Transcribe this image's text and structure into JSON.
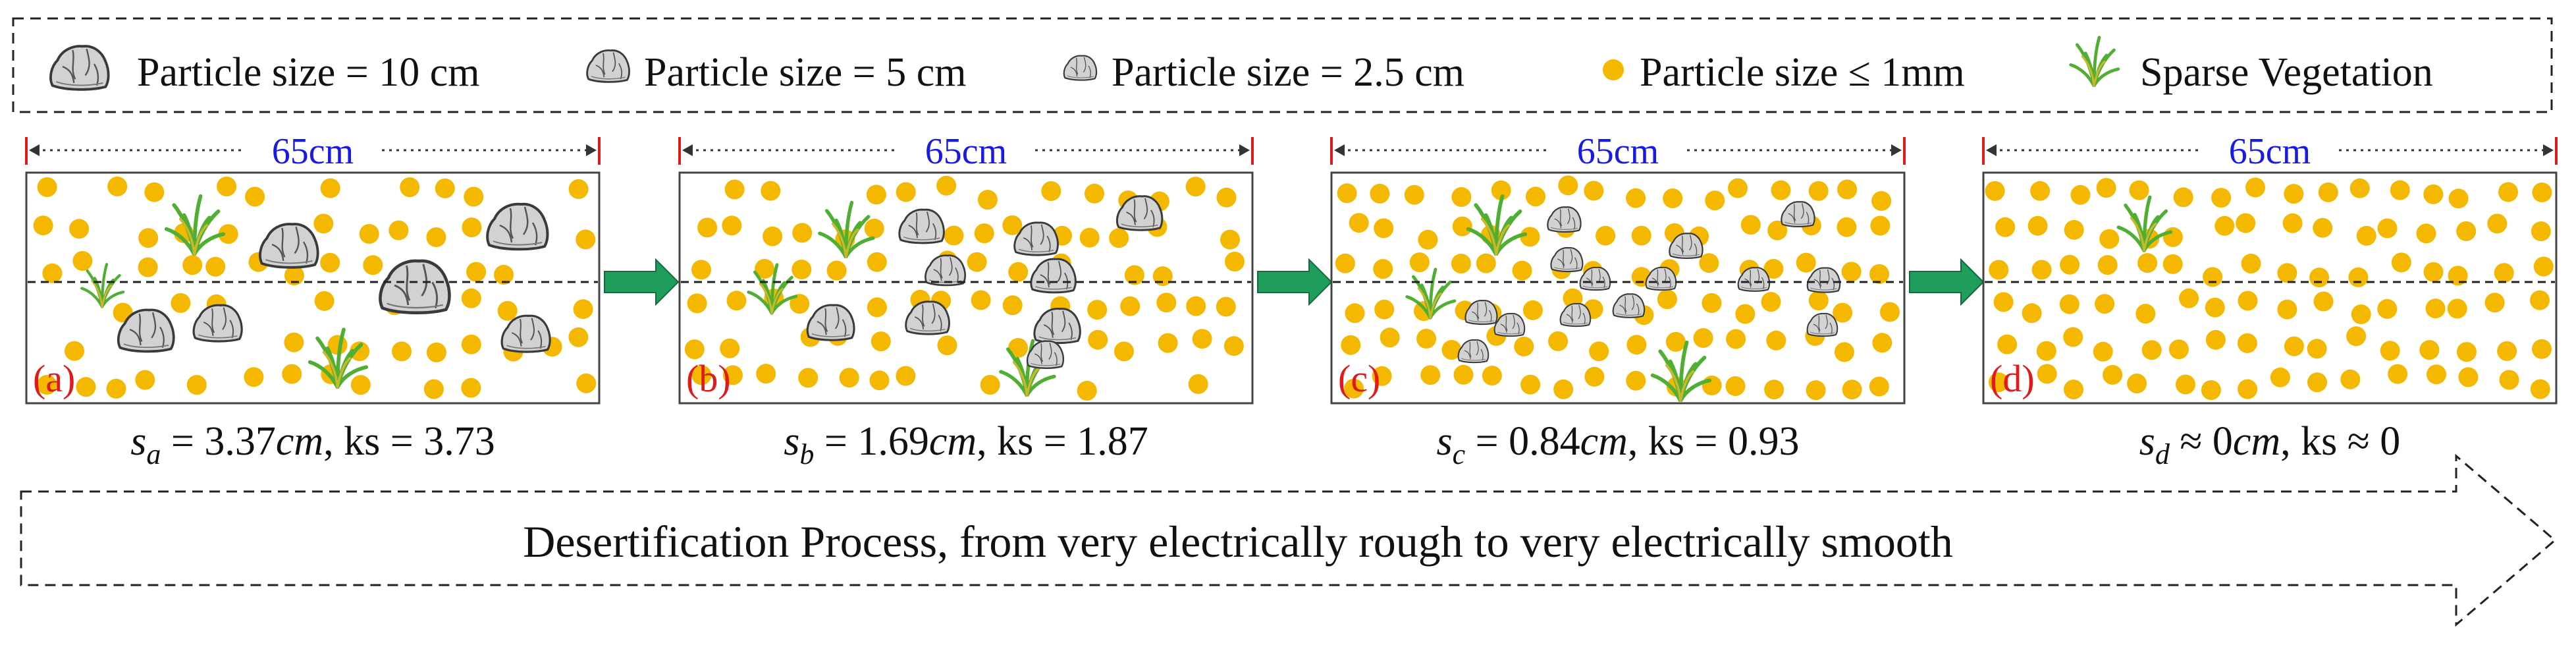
{
  "legend": {
    "items": [
      {
        "icon": "rock-large-icon",
        "label": "Particle size = 10 cm"
      },
      {
        "icon": "rock-medium-icon",
        "label": "Particle size = 5 cm"
      },
      {
        "icon": "rock-small-icon",
        "label": "Particle size = 2.5 cm"
      },
      {
        "icon": "sand-dot-icon",
        "label": "Particle size ≤ 1mm"
      },
      {
        "icon": "grass-icon",
        "label": "Sparse Vegetation"
      }
    ]
  },
  "panels": [
    {
      "id": "a",
      "label": "(a)",
      "width_label": "65cm",
      "formula": {
        "var": "s",
        "sub": "a",
        "rest": " = 3.37",
        "unit": "cm",
        "ks": ", ks = 3.73"
      }
    },
    {
      "id": "b",
      "label": "(b)",
      "width_label": "65cm",
      "formula": {
        "var": "s",
        "sub": "b",
        "rest": " = 1.69",
        "unit": "cm",
        "ks": ", ks = 1.87"
      }
    },
    {
      "id": "c",
      "label": "(c)",
      "width_label": "65cm",
      "formula": {
        "var": "s",
        "sub": "c",
        "rest": " = 0.84",
        "unit": "cm",
        "ks": ", ks = 0.93"
      }
    },
    {
      "id": "d",
      "label": "(d)",
      "width_label": "65cm",
      "formula": {
        "var": "s",
        "sub": "d",
        "rest": " ≈ 0",
        "unit": "cm",
        "ks": ", ks ≈ 0"
      }
    }
  ],
  "process_arrow": {
    "label": "Desertification Process, from very electrically rough to very electrically smooth"
  },
  "colors": {
    "sand": "#F5B800",
    "label_red": "#E0191B",
    "width_blue": "#1A1AE6",
    "flow_arrow": "#1E9E5A",
    "rock": "#CFCFCF",
    "grass": "#4FAF32"
  }
}
